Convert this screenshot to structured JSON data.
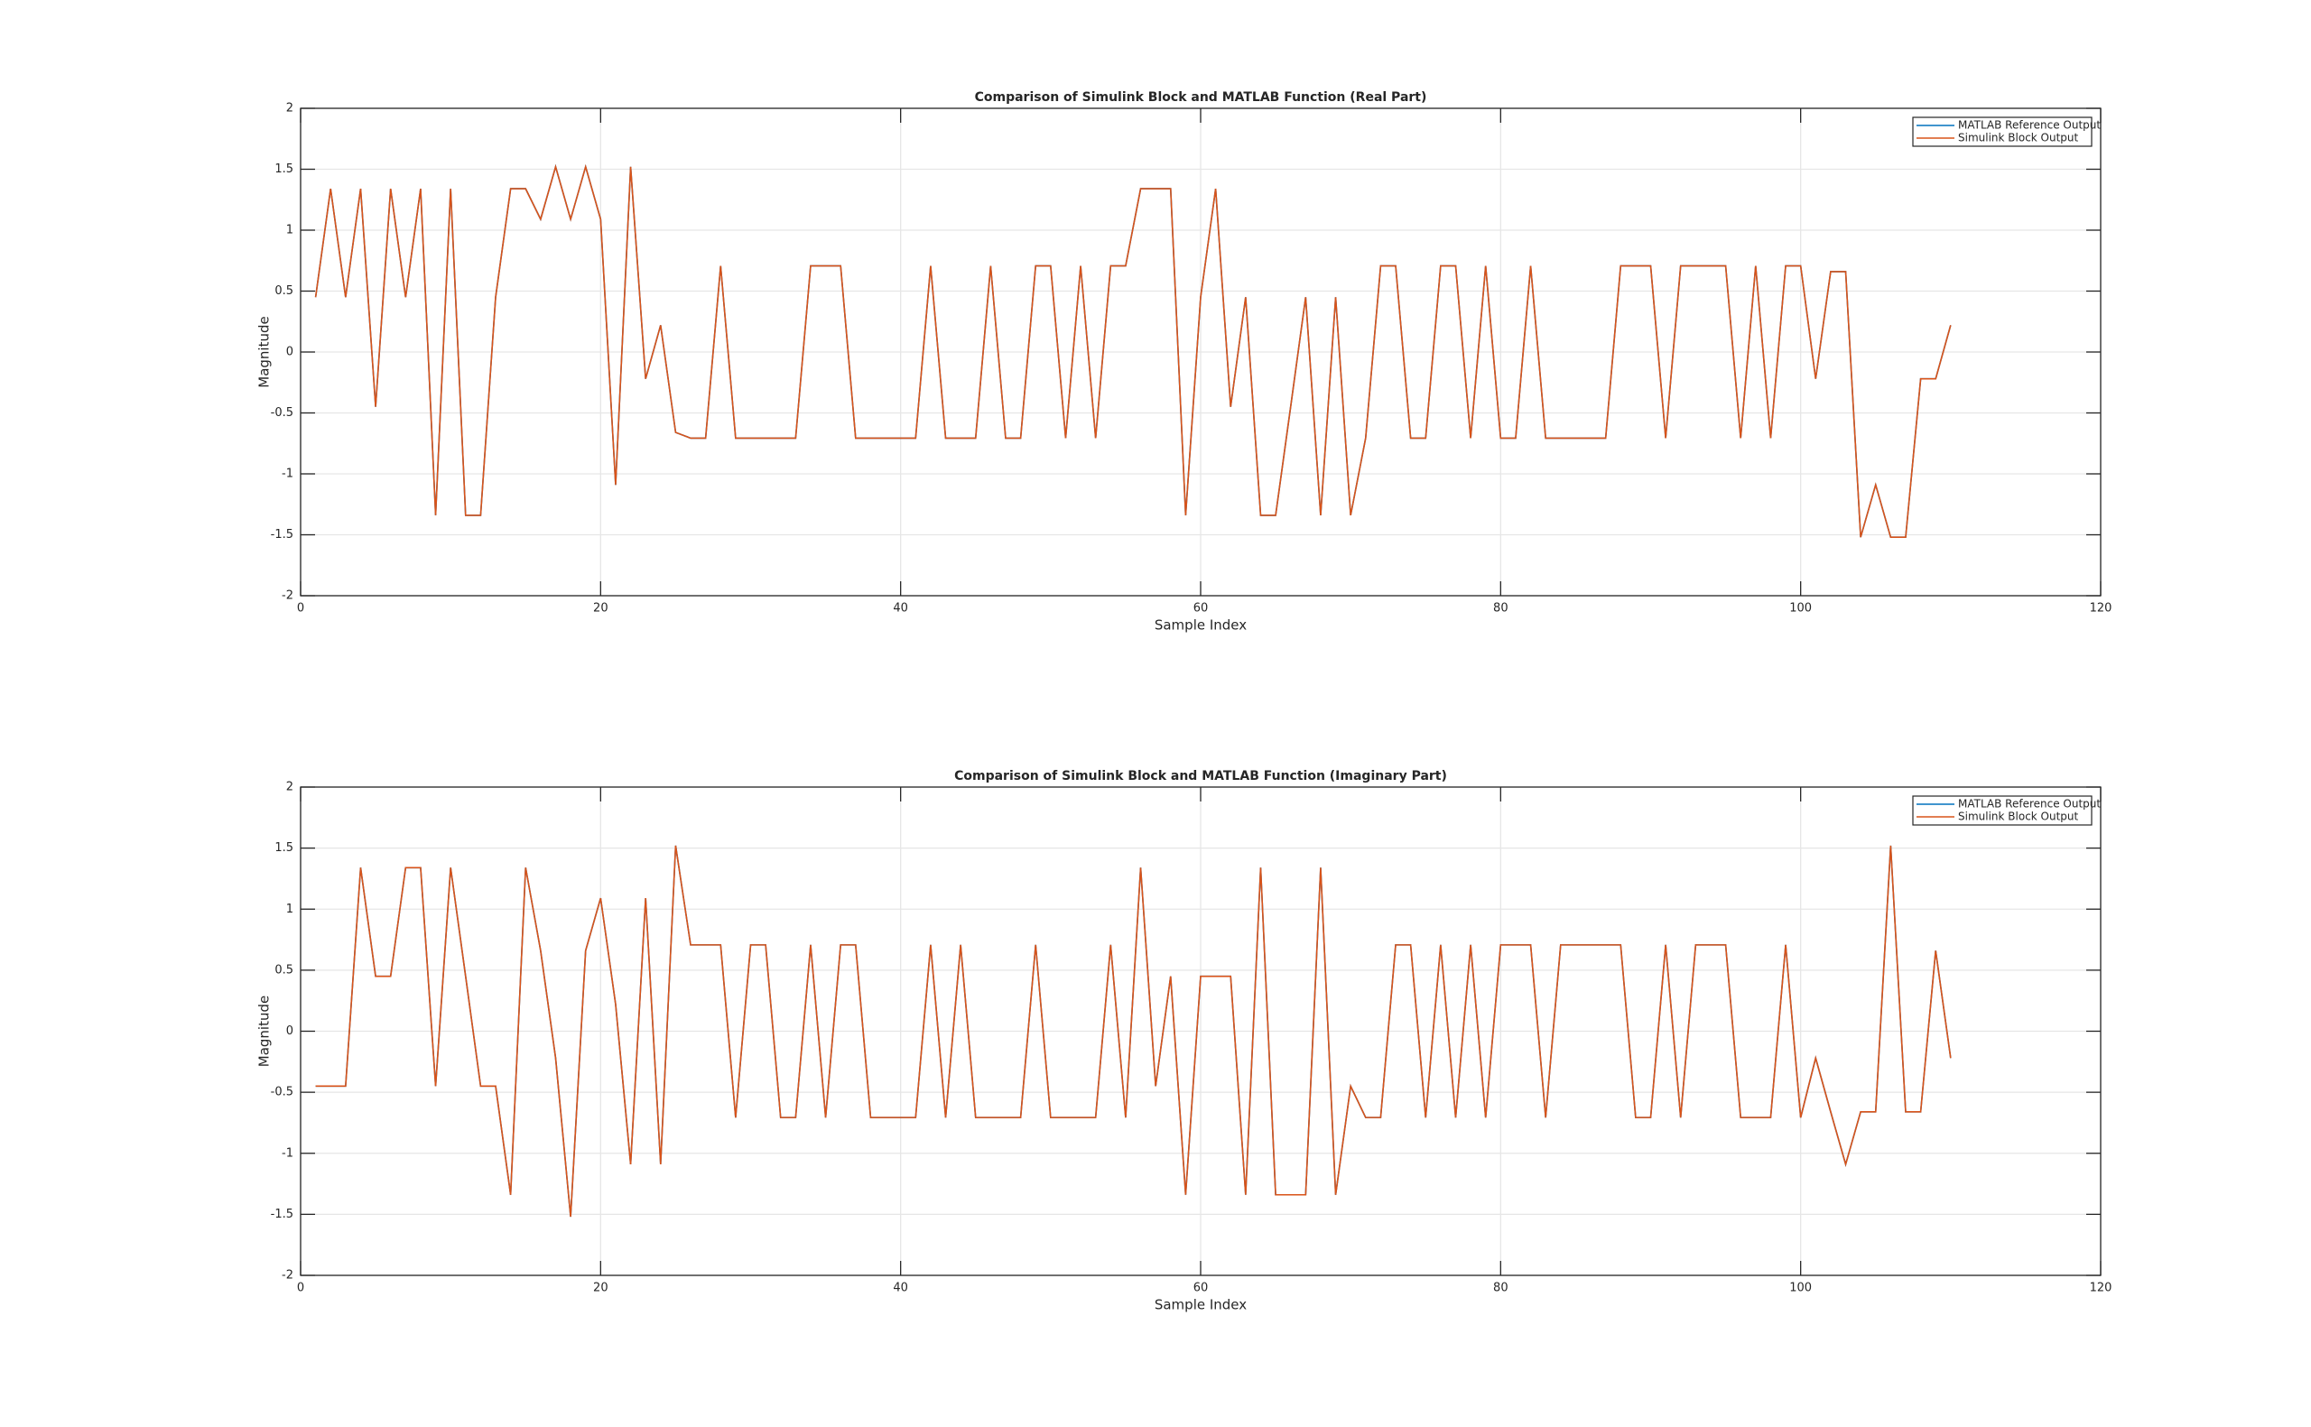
{
  "chart_data": [
    {
      "type": "line",
      "title": "Comparison of Simulink Block and MATLAB Function (Real Part)",
      "xlabel": "Sample Index",
      "ylabel": "Magnitude",
      "x": [
        1,
        2,
        3,
        4,
        5,
        6,
        7,
        8,
        9,
        10,
        11,
        12,
        13,
        14,
        15,
        16,
        17,
        18,
        19,
        20,
        21,
        22,
        23,
        24,
        25,
        26,
        27,
        28,
        29,
        30,
        31,
        32,
        33,
        34,
        35,
        36,
        37,
        38,
        39,
        40,
        41,
        42,
        43,
        44,
        45,
        46,
        47,
        48,
        49,
        50,
        51,
        52,
        53,
        54,
        55,
        56,
        57,
        58,
        59,
        60,
        61,
        62,
        63,
        64,
        65,
        66,
        67,
        68,
        69,
        70,
        71,
        72,
        73,
        74,
        75,
        76,
        77,
        78,
        79,
        80,
        81,
        82,
        83,
        84,
        85,
        86,
        87,
        88,
        89,
        90,
        91,
        92,
        93,
        94,
        95,
        96,
        97,
        98,
        99,
        100,
        101,
        102,
        103,
        104,
        105,
        106,
        107,
        108,
        109,
        110
      ],
      "series": [
        {
          "name": "MATLAB Reference Output",
          "color": "#0072bd",
          "values": [
            0.45,
            1.34,
            0.45,
            1.34,
            -0.45,
            1.34,
            0.45,
            1.34,
            -1.34,
            1.34,
            -1.34,
            -1.34,
            0.45,
            1.34,
            1.34,
            1.09,
            1.52,
            1.09,
            1.52,
            1.09,
            -1.09,
            1.52,
            -0.22,
            0.22,
            -0.66,
            -0.707,
            -0.707,
            0.707,
            -0.707,
            -0.707,
            -0.707,
            -0.707,
            -0.707,
            0.707,
            0.707,
            0.707,
            -0.707,
            -0.707,
            -0.707,
            -0.707,
            -0.707,
            0.707,
            -0.707,
            -0.707,
            -0.707,
            0.707,
            -0.707,
            -0.707,
            0.707,
            0.707,
            -0.707,
            0.707,
            -0.707,
            0.707,
            0.707,
            1.34,
            1.34,
            1.34,
            -1.34,
            0.45,
            1.34,
            -0.45,
            0.45,
            -1.34,
            -1.34,
            -0.45,
            0.45,
            -1.34,
            0.45,
            -1.34,
            -0.707,
            0.707,
            0.707,
            -0.707,
            -0.707,
            0.707,
            0.707,
            -0.707,
            0.707,
            -0.707,
            -0.707,
            0.707,
            -0.707,
            -0.707,
            -0.707,
            -0.707,
            -0.707,
            0.707,
            0.707,
            0.707,
            -0.707,
            0.707,
            0.707,
            0.707,
            0.707,
            -0.707,
            0.707,
            -0.707,
            0.707,
            0.707,
            -0.22,
            0.66,
            0.66,
            -1.52,
            -1.09,
            -1.52,
            -1.52,
            -0.22,
            -0.22,
            0.22
          ]
        },
        {
          "name": "Simulink Block Output",
          "color": "#d95319",
          "values": [
            0.45,
            1.34,
            0.45,
            1.34,
            -0.45,
            1.34,
            0.45,
            1.34,
            -1.34,
            1.34,
            -1.34,
            -1.34,
            0.45,
            1.34,
            1.34,
            1.09,
            1.52,
            1.09,
            1.52,
            1.09,
            -1.09,
            1.52,
            -0.22,
            0.22,
            -0.66,
            -0.707,
            -0.707,
            0.707,
            -0.707,
            -0.707,
            -0.707,
            -0.707,
            -0.707,
            0.707,
            0.707,
            0.707,
            -0.707,
            -0.707,
            -0.707,
            -0.707,
            -0.707,
            0.707,
            -0.707,
            -0.707,
            -0.707,
            0.707,
            -0.707,
            -0.707,
            0.707,
            0.707,
            -0.707,
            0.707,
            -0.707,
            0.707,
            0.707,
            1.34,
            1.34,
            1.34,
            -1.34,
            0.45,
            1.34,
            -0.45,
            0.45,
            -1.34,
            -1.34,
            -0.45,
            0.45,
            -1.34,
            0.45,
            -1.34,
            -0.707,
            0.707,
            0.707,
            -0.707,
            -0.707,
            0.707,
            0.707,
            -0.707,
            0.707,
            -0.707,
            -0.707,
            0.707,
            -0.707,
            -0.707,
            -0.707,
            -0.707,
            -0.707,
            0.707,
            0.707,
            0.707,
            -0.707,
            0.707,
            0.707,
            0.707,
            0.707,
            -0.707,
            0.707,
            -0.707,
            0.707,
            0.707,
            -0.22,
            0.66,
            0.66,
            -1.52,
            -1.09,
            -1.52,
            -1.52,
            -0.22,
            -0.22,
            0.22
          ]
        }
      ],
      "xlim": [
        0,
        120
      ],
      "ylim": [
        -2,
        2
      ],
      "xticks": [
        0,
        20,
        40,
        60,
        80,
        100,
        120
      ],
      "yticks": [
        -2,
        -1.5,
        -1,
        -0.5,
        0,
        0.5,
        1,
        1.5,
        2
      ],
      "grid": true,
      "legend": "northeast"
    },
    {
      "type": "line",
      "title": "Comparison of Simulink Block and MATLAB Function (Imaginary Part)",
      "xlabel": "Sample Index",
      "ylabel": "Magnitude",
      "x": [
        1,
        2,
        3,
        4,
        5,
        6,
        7,
        8,
        9,
        10,
        11,
        12,
        13,
        14,
        15,
        16,
        17,
        18,
        19,
        20,
        21,
        22,
        23,
        24,
        25,
        26,
        27,
        28,
        29,
        30,
        31,
        32,
        33,
        34,
        35,
        36,
        37,
        38,
        39,
        40,
        41,
        42,
        43,
        44,
        45,
        46,
        47,
        48,
        49,
        50,
        51,
        52,
        53,
        54,
        55,
        56,
        57,
        58,
        59,
        60,
        61,
        62,
        63,
        64,
        65,
        66,
        67,
        68,
        69,
        70,
        71,
        72,
        73,
        74,
        75,
        76,
        77,
        78,
        79,
        80,
        81,
        82,
        83,
        84,
        85,
        86,
        87,
        88,
        89,
        90,
        91,
        92,
        93,
        94,
        95,
        96,
        97,
        98,
        99,
        100,
        101,
        102,
        103,
        104,
        105,
        106,
        107,
        108,
        109,
        110
      ],
      "series": [
        {
          "name": "MATLAB Reference Output",
          "color": "#0072bd",
          "values": [
            -0.45,
            -0.45,
            -0.45,
            1.34,
            0.45,
            0.45,
            1.34,
            1.34,
            -0.45,
            1.34,
            0.45,
            -0.45,
            -0.45,
            -1.34,
            1.34,
            0.66,
            -0.22,
            -1.52,
            0.66,
            1.09,
            0.22,
            -1.09,
            1.09,
            -1.09,
            1.52,
            0.707,
            0.707,
            0.707,
            -0.707,
            0.707,
            0.707,
            -0.707,
            -0.707,
            0.707,
            -0.707,
            0.707,
            0.707,
            -0.707,
            -0.707,
            -0.707,
            -0.707,
            0.707,
            -0.707,
            0.707,
            -0.707,
            -0.707,
            -0.707,
            -0.707,
            0.707,
            -0.707,
            -0.707,
            -0.707,
            -0.707,
            0.707,
            -0.707,
            1.34,
            -0.45,
            0.45,
            -1.34,
            0.45,
            0.45,
            0.45,
            -1.34,
            1.34,
            -1.34,
            -1.34,
            -1.34,
            1.34,
            -1.34,
            -0.45,
            -0.707,
            -0.707,
            0.707,
            0.707,
            -0.707,
            0.707,
            -0.707,
            0.707,
            -0.707,
            0.707,
            0.707,
            0.707,
            -0.707,
            0.707,
            0.707,
            0.707,
            0.707,
            0.707,
            -0.707,
            -0.707,
            0.707,
            -0.707,
            0.707,
            0.707,
            0.707,
            -0.707,
            -0.707,
            -0.707,
            0.707,
            -0.707,
            -0.22,
            -0.66,
            -1.09,
            -0.66,
            -0.66,
            1.52,
            -0.66,
            -0.66,
            0.66,
            -0.22
          ]
        },
        {
          "name": "Simulink Block Output",
          "color": "#d95319",
          "values": [
            -0.45,
            -0.45,
            -0.45,
            1.34,
            0.45,
            0.45,
            1.34,
            1.34,
            -0.45,
            1.34,
            0.45,
            -0.45,
            -0.45,
            -1.34,
            1.34,
            0.66,
            -0.22,
            -1.52,
            0.66,
            1.09,
            0.22,
            -1.09,
            1.09,
            -1.09,
            1.52,
            0.707,
            0.707,
            0.707,
            -0.707,
            0.707,
            0.707,
            -0.707,
            -0.707,
            0.707,
            -0.707,
            0.707,
            0.707,
            -0.707,
            -0.707,
            -0.707,
            -0.707,
            0.707,
            -0.707,
            0.707,
            -0.707,
            -0.707,
            -0.707,
            -0.707,
            0.707,
            -0.707,
            -0.707,
            -0.707,
            -0.707,
            0.707,
            -0.707,
            1.34,
            -0.45,
            0.45,
            -1.34,
            0.45,
            0.45,
            0.45,
            -1.34,
            1.34,
            -1.34,
            -1.34,
            -1.34,
            1.34,
            -1.34,
            -0.45,
            -0.707,
            -0.707,
            0.707,
            0.707,
            -0.707,
            0.707,
            -0.707,
            0.707,
            -0.707,
            0.707,
            0.707,
            0.707,
            -0.707,
            0.707,
            0.707,
            0.707,
            0.707,
            0.707,
            -0.707,
            -0.707,
            0.707,
            -0.707,
            0.707,
            0.707,
            0.707,
            -0.707,
            -0.707,
            -0.707,
            0.707,
            -0.707,
            -0.22,
            -0.66,
            -1.09,
            -0.66,
            -0.66,
            1.52,
            -0.66,
            -0.66,
            0.66,
            -0.22
          ]
        }
      ],
      "xlim": [
        0,
        120
      ],
      "ylim": [
        -2,
        2
      ],
      "xticks": [
        0,
        20,
        40,
        60,
        80,
        100,
        120
      ],
      "yticks": [
        -2,
        -1.5,
        -1,
        -0.5,
        0,
        0.5,
        1,
        1.5,
        2
      ],
      "grid": true,
      "legend": "northeast"
    }
  ]
}
